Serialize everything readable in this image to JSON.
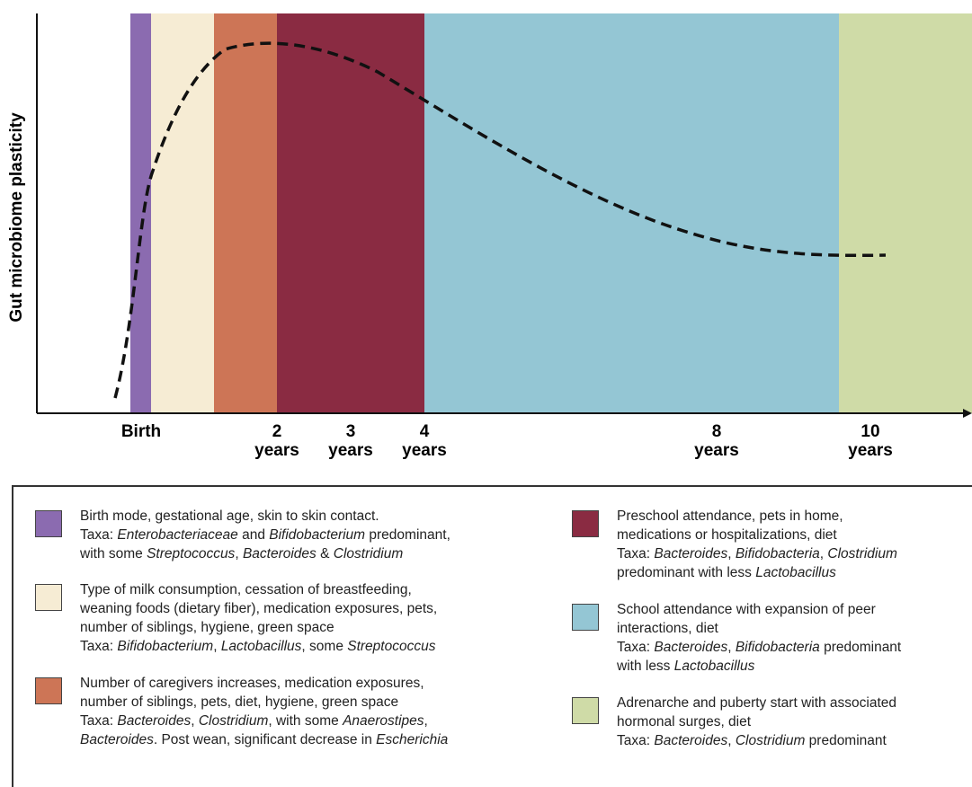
{
  "chart": {
    "y_axis_title": "Gut microbiome plasticity",
    "ticks": [
      {
        "label": "Birth",
        "second": ""
      },
      {
        "label": "2",
        "second": "years"
      },
      {
        "label": "3",
        "second": "years"
      },
      {
        "label": "4",
        "second": "years"
      },
      {
        "label": "8",
        "second": "years"
      },
      {
        "label": "10",
        "second": "years"
      }
    ],
    "stages": [
      {
        "color": "#8b6bb0"
      },
      {
        "color": "#f6ecd4"
      },
      {
        "color": "#cd7556"
      },
      {
        "color": "#8a2b42"
      },
      {
        "color": "#94c6d4"
      },
      {
        "color": "#cfdba7"
      }
    ]
  },
  "legend": {
    "items": [
      {
        "lines": [
          "Birth mode, gestational age, skin to skin contact.",
          "Taxa: *Enterobacteriaceae* and *Bifidobacterium* predominant,",
          "with some *Streptococcus*, *Bacteroides* & *Clostridium*"
        ]
      },
      {
        "lines": [
          "Type of milk consumption, cessation of breastfeeding,",
          "weaning foods (dietary fiber), medication exposures, pets,",
          "number of siblings, hygiene, green space",
          "Taxa: *Bifidobacterium*, *Lactobacillus*, some *Streptococcus*"
        ]
      },
      {
        "lines": [
          "Number of caregivers increases, medication exposures,",
          "number of siblings, pets, diet, hygiene, green space",
          "Taxa: *Bacteroides*, *Clostridium*, with some *Anaerostipes*,",
          "*Bacteroides*. Post wean, significant decrease in *Escherichia*"
        ]
      },
      {
        "lines": [
          "Preschool attendance, pets in home,",
          "medications or hospitalizations, diet",
          "Taxa: *Bacteroides*, *Bifidobacteria*, *Clostridium*",
          "predominant with less *Lactobacillus*"
        ]
      },
      {
        "lines": [
          "School attendance with expansion of peer",
          "interactions, diet",
          "Taxa: *Bacteroides*, *Bifidobacteria* predominant",
          "with less *Lactobacillus*"
        ]
      },
      {
        "lines": [
          "Adrenarche and puberty start with associated",
          "hormonal surges, diet",
          "Taxa: *Bacteroides*, *Clostridium* predominant"
        ]
      }
    ]
  }
}
